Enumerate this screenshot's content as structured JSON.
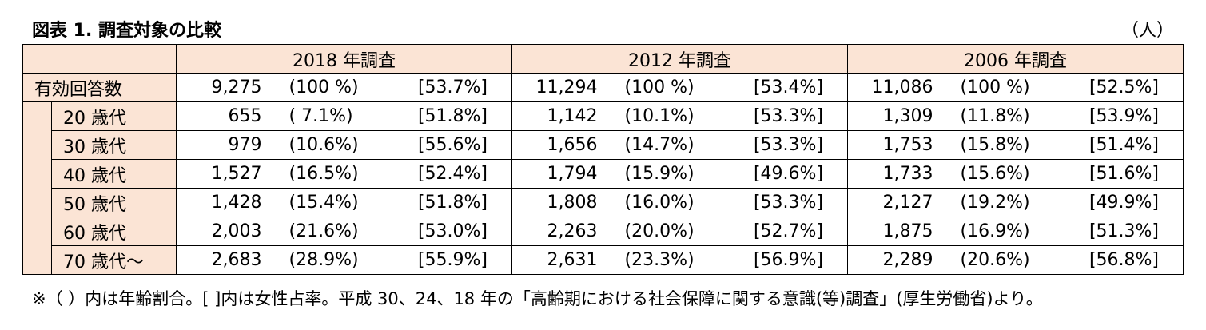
{
  "header": {
    "title": "図表 1. 調査対象の比較",
    "unit": "（人）"
  },
  "table": {
    "columns": [
      "2018 年調査",
      "2012 年調査",
      "2006 年調査"
    ],
    "rows": [
      {
        "label": "有効回答数",
        "cells": [
          [
            "9,275",
            "(100 %)",
            "[53.7%]"
          ],
          [
            "11,294",
            "(100 %)",
            "[53.4%]"
          ],
          [
            "11,086",
            "(100 %)",
            "[52.5%]"
          ]
        ]
      },
      {
        "label": "20 歳代",
        "cells": [
          [
            "655",
            "( 7.1%)",
            "[51.8%]"
          ],
          [
            "1,142",
            "(10.1%)",
            "[53.3%]"
          ],
          [
            "1,309",
            "(11.8%)",
            "[53.9%]"
          ]
        ]
      },
      {
        "label": "30 歳代",
        "cells": [
          [
            "979",
            "(10.6%)",
            "[55.6%]"
          ],
          [
            "1,656",
            "(14.7%)",
            "[53.3%]"
          ],
          [
            "1,753",
            "(15.8%)",
            "[51.4%]"
          ]
        ]
      },
      {
        "label": "40 歳代",
        "cells": [
          [
            "1,527",
            "(16.5%)",
            "[52.4%]"
          ],
          [
            "1,794",
            "(15.9%)",
            "[49.6%]"
          ],
          [
            "1,733",
            "(15.6%)",
            "[51.6%]"
          ]
        ]
      },
      {
        "label": "50 歳代",
        "cells": [
          [
            "1,428",
            "(15.4%)",
            "[51.8%]"
          ],
          [
            "1,808",
            "(16.0%)",
            "[53.3%]"
          ],
          [
            "2,127",
            "(19.2%)",
            "[49.9%]"
          ]
        ]
      },
      {
        "label": "60 歳代",
        "cells": [
          [
            "2,003",
            "(21.6%)",
            "[53.0%]"
          ],
          [
            "2,263",
            "(20.0%)",
            "[52.7%]"
          ],
          [
            "1,875",
            "(16.9%)",
            "[51.3%]"
          ]
        ]
      },
      {
        "label": "70 歳代～",
        "cells": [
          [
            "2,683",
            "(28.9%)",
            "[55.9%]"
          ],
          [
            "2,631",
            "(23.3%)",
            "[56.9%]"
          ],
          [
            "2,289",
            "(20.6%)",
            "[56.8%]"
          ]
        ]
      }
    ]
  },
  "footnote": "※（ ）内は年齢割合。[ ]内は女性占率。平成 30、24、18 年の「高齢期における社会保障に関する意識(等)調査」(厚生労働省)より。"
}
